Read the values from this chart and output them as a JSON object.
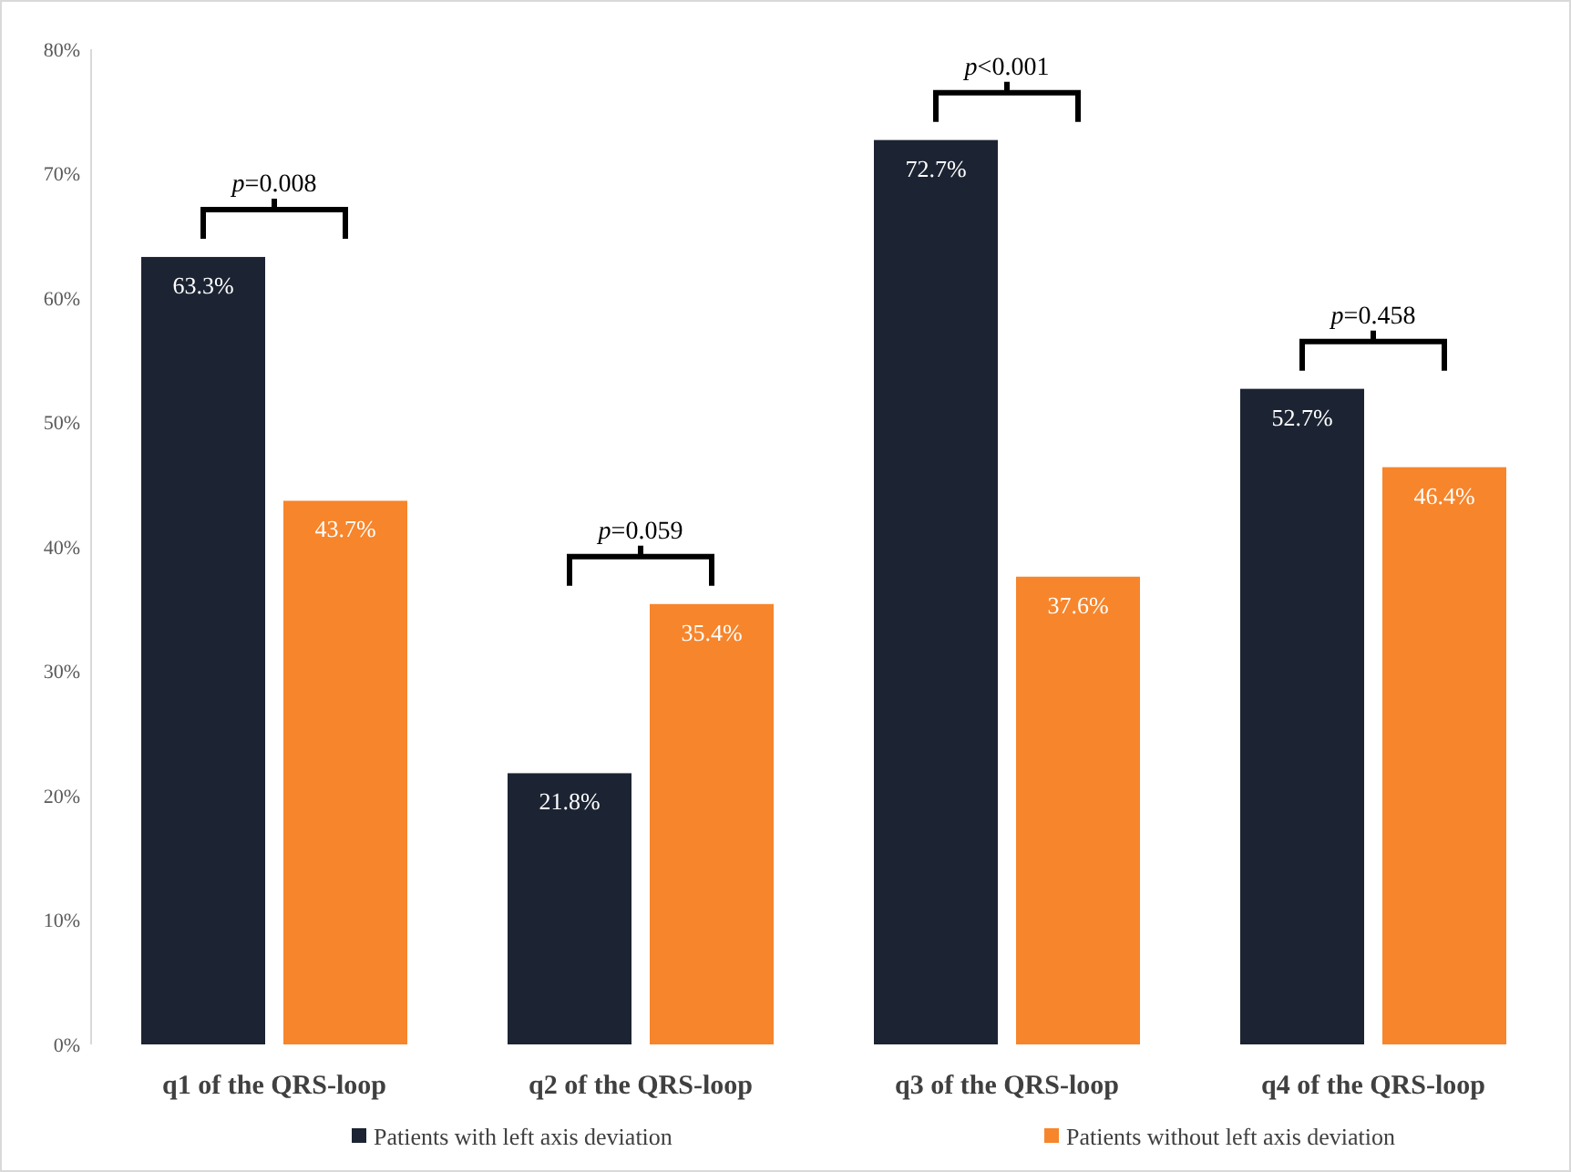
{
  "chart_data": {
    "type": "bar",
    "categories": [
      "q1 of the QRS-loop",
      "q2 of the QRS-loop",
      "q3 of the QRS-loop",
      "q4 of the QRS-loop"
    ],
    "series": [
      {
        "name": "Patients with left axis deviation",
        "color": "#1c2433",
        "values": [
          63.3,
          21.8,
          72.7,
          52.7
        ],
        "value_labels": [
          "63.3%",
          "21.8%",
          "72.7%",
          "52.7%"
        ]
      },
      {
        "name": "Patients without left axis deviation",
        "color": "#f7852b",
        "values": [
          43.7,
          35.4,
          37.6,
          46.4
        ],
        "value_labels": [
          "43.7%",
          "35.4%",
          "37.6%",
          "46.4%"
        ]
      }
    ],
    "ylim": [
      0,
      80
    ],
    "yticks": [
      {
        "value": 0,
        "label": "0%"
      },
      {
        "value": 10,
        "label": "10%"
      },
      {
        "value": 20,
        "label": "20%"
      },
      {
        "value": 30,
        "label": "30%"
      },
      {
        "value": 40,
        "label": "40%"
      },
      {
        "value": 50,
        "label": "50%"
      },
      {
        "value": 60,
        "label": "60%"
      },
      {
        "value": 70,
        "label": "70%"
      },
      {
        "value": 80,
        "label": "80%"
      }
    ],
    "annotations": [
      "p=0.008",
      "p=0.059",
      "p<0.001",
      "p=0.458"
    ],
    "legend": "bottom"
  }
}
